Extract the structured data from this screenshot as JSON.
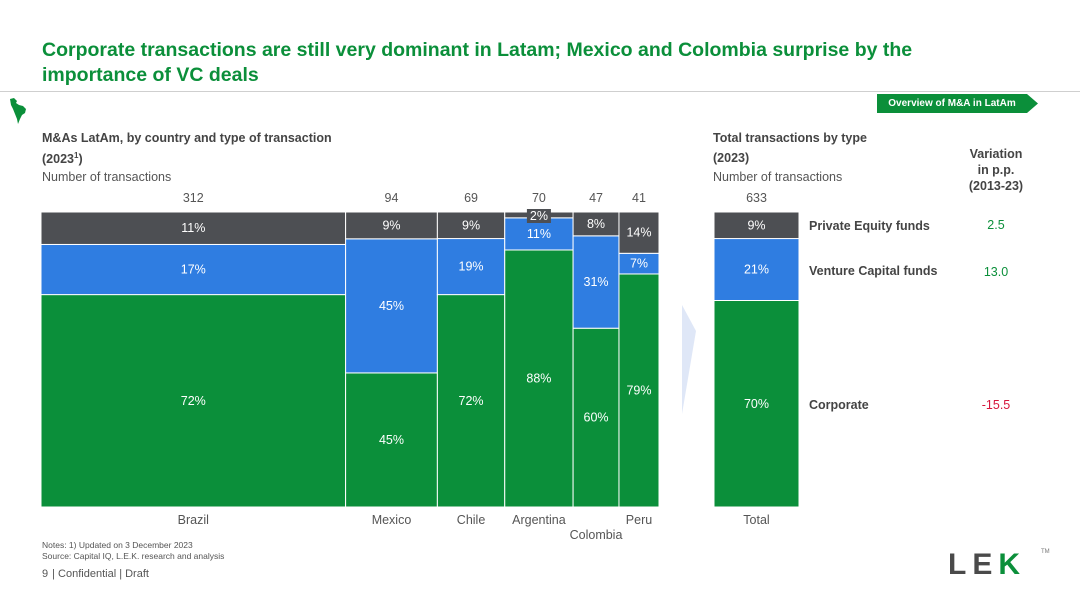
{
  "title": "Corporate transactions are still very dominant in Latam; Mexico and Colombia surprise by the importance of VC deals",
  "tag": "Overview of M&A in LatAm",
  "left_chart": {
    "title": "M&As LatAm, by country and type of transaction",
    "subtitle_year": "(2023",
    "subtitle_sup": "1",
    "subtitle_close": ")",
    "unit": "Number of transactions"
  },
  "right_chart": {
    "title": "Total transactions by type",
    "subtitle": "(2023)",
    "unit": "Number of transactions"
  },
  "variation": {
    "header_line1": "Variation",
    "header_line2": "in p.p.",
    "header_line3": "(2013-23)",
    "rows": [
      {
        "label": "Private Equity funds",
        "value": "2.5",
        "color": "#0b8f3a"
      },
      {
        "label": "Venture Capital funds",
        "value": "13.0",
        "color": "#0b8f3a"
      },
      {
        "label": "Corporate",
        "value": "-15.5",
        "color": "#d6163b"
      }
    ]
  },
  "chart_data": [
    {
      "type": "marimekko",
      "title": "M&As LatAm, by country and type of transaction (2023)",
      "ylabel": "Number of transactions",
      "series_order": [
        "Corporate",
        "Venture Capital funds",
        "Private Equity funds"
      ],
      "colors": {
        "Corporate": "#0b8f3a",
        "Venture Capital funds": "#2f7de1",
        "Private Equity funds": "#4d4f53"
      },
      "categories": [
        {
          "name": "Brazil",
          "total": 312,
          "shares": [
            72,
            17,
            11
          ],
          "labels": [
            "72%",
            "17%",
            "11%"
          ]
        },
        {
          "name": "Mexico",
          "total": 94,
          "shares": [
            45,
            45,
            9
          ],
          "labels": [
            "45%",
            "45%",
            "9%"
          ]
        },
        {
          "name": "Chile",
          "total": 69,
          "shares": [
            72,
            19,
            9
          ],
          "labels": [
            "72%",
            "19%",
            "9%"
          ]
        },
        {
          "name": "Argentina",
          "total": 70,
          "shares": [
            88,
            11,
            2
          ],
          "labels": [
            "88%",
            "11%",
            "2%"
          ]
        },
        {
          "name": "Colombia",
          "total": 47,
          "shares": [
            60,
            31,
            8
          ],
          "labels": [
            "60%",
            "31%",
            "8%"
          ]
        },
        {
          "name": "Peru",
          "total": 41,
          "shares": [
            79,
            7,
            14
          ],
          "labels": [
            "79%",
            "7%",
            "14%"
          ]
        }
      ]
    },
    {
      "type": "stacked-bar",
      "title": "Total transactions by type (2023)",
      "ylabel": "Number of transactions",
      "categories": [
        {
          "name": "Total",
          "total": 633,
          "shares": [
            70,
            21,
            9
          ],
          "labels": [
            "70%",
            "21%",
            "9%"
          ]
        }
      ]
    }
  ],
  "notes_line1": "Notes:   1) Updated on 3 December 2023",
  "notes_line2": "Source:  Capital IQ, L.E.K. research and analysis",
  "footer_page": "9",
  "footer_text": "| Confidential | Draft",
  "logo": {
    "l": "L",
    "e": "E",
    "k": "K",
    "tm": "TM"
  }
}
